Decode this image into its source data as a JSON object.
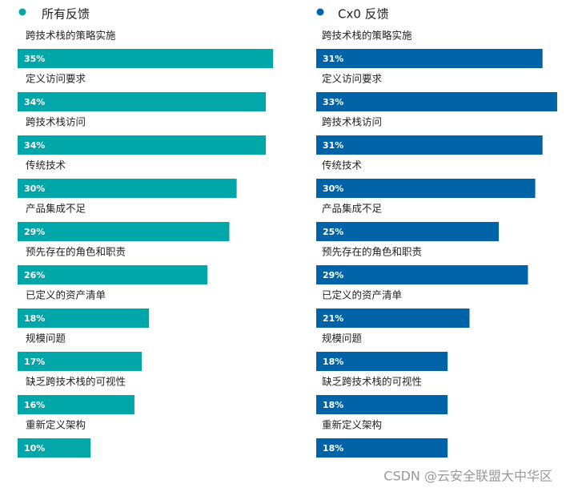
{
  "chart_data": [
    {
      "type": "bar",
      "title": "所有反馈",
      "color": "#00a6a8",
      "categories": [
        "跨技术栈的策略实施",
        "定义访问要求",
        "跨技术栈访问",
        "传统技术",
        "产品集成不足",
        "预先存在的角色和职责",
        "已定义的资产清单",
        "规模问题",
        "缺乏跨技术栈的可视性",
        "重新定义架构"
      ],
      "values": [
        35,
        34,
        34,
        30,
        29,
        26,
        18,
        17,
        16,
        10
      ],
      "value_labels": [
        "35%",
        "34%",
        "34%",
        "30%",
        "29%",
        "26%",
        "18%",
        "17%",
        "16%",
        "10%"
      ]
    },
    {
      "type": "bar",
      "title": "Cx0 反馈",
      "color": "#0063a8",
      "categories": [
        "跨技术栈的策略实施",
        "定义访问要求",
        "跨技术栈访问",
        "传统技术",
        "产品集成不足",
        "预先存在的角色和职责",
        "已定义的资产清单",
        "规模问题",
        "缺乏跨技术栈的可视性",
        "重新定义架构"
      ],
      "values": [
        31,
        33,
        31,
        30,
        25,
        29,
        21,
        18,
        18,
        18
      ],
      "value_labels": [
        "31%",
        "33%",
        "31%",
        "30%",
        "25%",
        "29%",
        "21%",
        "18%",
        "18%",
        "18%"
      ]
    }
  ],
  "watermark": "CSDN @云安全联盟大中华区"
}
